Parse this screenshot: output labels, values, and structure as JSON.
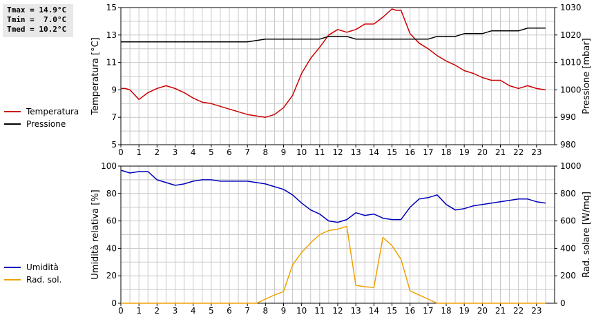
{
  "stats": {
    "tmax": "Tmax = 14.9°C",
    "tmin": "Tmin =  7.0°C",
    "tmed": "Tmed = 10.2°C"
  },
  "colors": {
    "temperatura": "#cc0000",
    "pressione": "#000000",
    "umidita": "#0000bb",
    "radsol": "#f0a000",
    "grid": "#c8c8c8"
  },
  "chart_data": [
    {
      "type": "line",
      "x_ticks": [
        "0",
        "1",
        "2",
        "3",
        "4",
        "5",
        "6",
        "7",
        "8",
        "9",
        "10",
        "11",
        "12",
        "13",
        "14",
        "15",
        "16",
        "17",
        "18",
        "19",
        "20",
        "21",
        "22",
        "23"
      ],
      "ylabel": "Temperatura [°C]",
      "ylim": [
        5,
        15
      ],
      "yticks": [
        "5",
        "7",
        "9",
        "11",
        "13",
        "15"
      ],
      "y2label": "Pressione [mbar]",
      "y2lim": [
        980,
        1030
      ],
      "y2ticks": [
        "980",
        "990",
        "1000",
        "1010",
        "1020",
        "1030"
      ],
      "grid": true,
      "legend_position": "left",
      "series": [
        {
          "name": "Temperatura",
          "axis": "left",
          "x": [
            0,
            0.25,
            0.5,
            1,
            1.5,
            2,
            2.5,
            3,
            3.5,
            4,
            4.5,
            5,
            5.5,
            6,
            6.5,
            7,
            7.5,
            8,
            8.5,
            9,
            9.5,
            10,
            10.5,
            11,
            11.5,
            12,
            12.5,
            13,
            13.5,
            14,
            14.5,
            15,
            15.25,
            15.5,
            16,
            16.5,
            17,
            17.5,
            18,
            18.5,
            19,
            19.5,
            20,
            20.5,
            21,
            21.5,
            22,
            22.5,
            23,
            23.5
          ],
          "y": [
            9.1,
            9.1,
            9.0,
            8.3,
            8.8,
            9.1,
            9.3,
            9.1,
            8.8,
            8.4,
            8.1,
            8.0,
            7.8,
            7.6,
            7.4,
            7.2,
            7.1,
            7.0,
            7.2,
            7.7,
            8.6,
            10.2,
            11.3,
            12.1,
            13.0,
            13.4,
            13.2,
            13.4,
            13.8,
            13.8,
            14.3,
            14.9,
            14.8,
            14.8,
            13.1,
            12.4,
            12.0,
            11.5,
            11.1,
            10.8,
            10.4,
            10.2,
            9.9,
            9.7,
            9.7,
            9.3,
            9.1,
            9.3,
            9.1,
            9.0
          ]
        },
        {
          "name": "Pressione",
          "axis": "right",
          "x": [
            0,
            7,
            7.5,
            8,
            11,
            11.5,
            12.5,
            13,
            17,
            17.5,
            18.5,
            19,
            20,
            20.5,
            22,
            22.5,
            23.5
          ],
          "y": [
            1017.5,
            1017.5,
            1018,
            1018.5,
            1018.5,
            1019.5,
            1019.5,
            1018.5,
            1018.5,
            1019.5,
            1019.5,
            1020.5,
            1020.5,
            1021.5,
            1021.5,
            1022.5,
            1022.5
          ]
        }
      ]
    },
    {
      "type": "line",
      "x_ticks": [
        "0",
        "1",
        "2",
        "3",
        "4",
        "5",
        "6",
        "7",
        "8",
        "9",
        "10",
        "11",
        "12",
        "13",
        "14",
        "15",
        "16",
        "17",
        "18",
        "19",
        "20",
        "21",
        "22",
        "23"
      ],
      "ylabel": "Umidità relativa [%]",
      "ylim": [
        0,
        100
      ],
      "yticks": [
        "0",
        "20",
        "40",
        "60",
        "80",
        "100"
      ],
      "y2label": "Rad. solare [W/mq]",
      "y2lim": [
        0,
        1000
      ],
      "y2ticks": [
        "0",
        "200",
        "400",
        "600",
        "800",
        "1000"
      ],
      "grid": true,
      "legend_position": "left",
      "series": [
        {
          "name": "Umidità",
          "axis": "left",
          "x": [
            0,
            0.5,
            1,
            1.5,
            2,
            2.5,
            3,
            3.5,
            4,
            4.5,
            5,
            5.5,
            6,
            6.5,
            7,
            7.5,
            8,
            8.5,
            9,
            9.5,
            10,
            10.5,
            11,
            11.5,
            12,
            12.5,
            13,
            13.5,
            14,
            14.5,
            15,
            15.5,
            16,
            16.5,
            17,
            17.5,
            18,
            18.5,
            19,
            19.5,
            20,
            20.5,
            21,
            21.5,
            22,
            22.5,
            23,
            23.5
          ],
          "y": [
            97,
            95,
            96,
            96,
            90,
            88,
            86,
            87,
            89,
            90,
            90,
            89,
            89,
            89,
            89,
            88,
            87,
            85,
            83,
            79,
            73,
            68,
            65,
            60,
            59,
            61,
            66,
            64,
            65,
            62,
            61,
            61,
            70,
            76,
            77,
            79,
            72,
            68,
            69,
            71,
            72,
            73,
            74,
            75,
            76,
            76,
            74,
            73
          ]
        },
        {
          "name": "Rad. sol.",
          "axis": "right",
          "x": [
            0,
            7.5,
            8,
            8.5,
            9,
            9.5,
            10,
            10.5,
            11,
            11.5,
            12,
            12.5,
            13,
            13.5,
            14,
            14.5,
            15,
            15.5,
            16,
            16.5,
            17,
            17.5,
            23.5
          ],
          "y": [
            0,
            0,
            30,
            60,
            85,
            280,
            370,
            440,
            500,
            530,
            540,
            560,
            130,
            120,
            115,
            480,
            420,
            320,
            90,
            60,
            30,
            0,
            0
          ]
        }
      ]
    }
  ]
}
